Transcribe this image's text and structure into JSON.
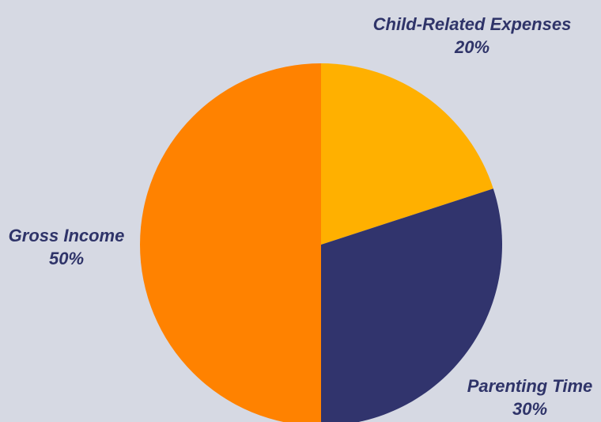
{
  "chart_data": {
    "type": "pie",
    "slices": [
      {
        "name": "Child-Related Expenses",
        "value": 20,
        "label": "20%",
        "color": "#ffb000"
      },
      {
        "name": "Parenting Time",
        "value": 30,
        "label": "30%",
        "color": "#31346d"
      },
      {
        "name": "Gross Income",
        "value": 50,
        "label": "50%",
        "color": "#ff8200"
      }
    ],
    "start": "12 o'clock",
    "direction": "clockwise",
    "legend": "none"
  },
  "colors": {
    "background": "#d6d9e3",
    "label_text": "#2f3469"
  }
}
